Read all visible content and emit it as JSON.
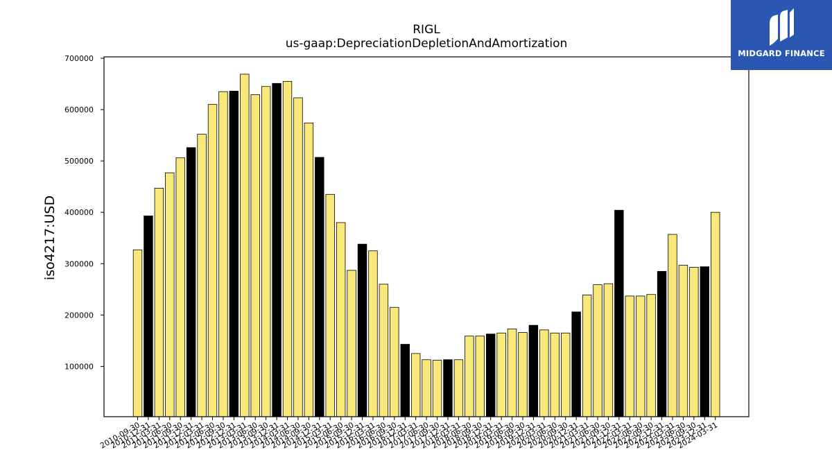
{
  "chart_data": {
    "type": "bar",
    "title": "RIGL",
    "subtitle": "us-gaap:DepreciationDepletionAndAmortization",
    "ylabel": "iso4217:USD",
    "xlabel": "",
    "ylim": [
      0,
      700000
    ],
    "yticks": [
      100000,
      200000,
      300000,
      400000,
      500000,
      600000,
      700000
    ],
    "ytick_labels": [
      "100000",
      "200000",
      "300000",
      "400000",
      "500000",
      "600000",
      "700000"
    ],
    "grid": false,
    "colors": {
      "regular": "#f8e879",
      "highlight": "#000000",
      "edge": "#000000"
    },
    "categories": [
      "2010-09-30",
      "2010-12-31",
      "2011-03-31",
      "2011-06-30",
      "2011-09-30",
      "2011-12-31",
      "2012-03-31",
      "2012-06-30",
      "2012-09-30",
      "2012-12-31",
      "2013-03-31",
      "2013-06-30",
      "2013-09-30",
      "2013-12-31",
      "2014-03-31",
      "2014-06-30",
      "2014-09-30",
      "2014-12-31",
      "2015-03-31",
      "2015-06-30",
      "2015-09-30",
      "2015-12-31",
      "2016-03-31",
      "2016-06-30",
      "2016-09-30",
      "2016-12-31",
      "2017-03-31",
      "2017-06-30",
      "2017-09-30",
      "2017-12-31",
      "2018-03-31",
      "2018-06-30",
      "2018-09-30",
      "2018-12-31",
      "2019-03-31",
      "2019-06-30",
      "2019-09-30",
      "2019-12-31",
      "2020-03-31",
      "2020-06-30",
      "2020-09-30",
      "2020-12-31",
      "2021-03-31",
      "2021-06-30",
      "2021-09-30",
      "2021-12-31",
      "2022-03-31",
      "2022-06-30",
      "2022-09-30",
      "2022-12-31",
      "2023-03-31",
      "2023-06-30",
      "2023-09-30",
      "2023-12-31",
      "2024-03-31"
    ],
    "values": [
      327000,
      393000,
      447000,
      477000,
      506000,
      526000,
      552000,
      610000,
      635000,
      636000,
      669000,
      629000,
      645000,
      651000,
      655000,
      623000,
      574000,
      507000,
      435000,
      380000,
      287000,
      338000,
      325000,
      260000,
      215000,
      143000,
      125000,
      113000,
      112000,
      113000,
      113000,
      159000,
      159000,
      163000,
      165000,
      173000,
      166000,
      180000,
      171000,
      165000,
      165000,
      206000,
      239000,
      259000,
      261000,
      404000,
      237000,
      237000,
      240000,
      285000,
      357000,
      297000,
      293000,
      294000,
      400000
    ],
    "highlighted": [
      false,
      true,
      false,
      false,
      false,
      true,
      false,
      false,
      false,
      true,
      false,
      false,
      false,
      true,
      false,
      false,
      false,
      true,
      false,
      false,
      false,
      true,
      false,
      false,
      false,
      true,
      false,
      false,
      false,
      true,
      false,
      false,
      false,
      true,
      false,
      false,
      false,
      true,
      false,
      false,
      false,
      true,
      false,
      false,
      false,
      true,
      false,
      false,
      false,
      true,
      false,
      false,
      false,
      true,
      false
    ]
  },
  "logo": {
    "text": "MIDGARD FINANCE",
    "background": "#2b57b3",
    "icon": "midgard-logo-icon"
  }
}
